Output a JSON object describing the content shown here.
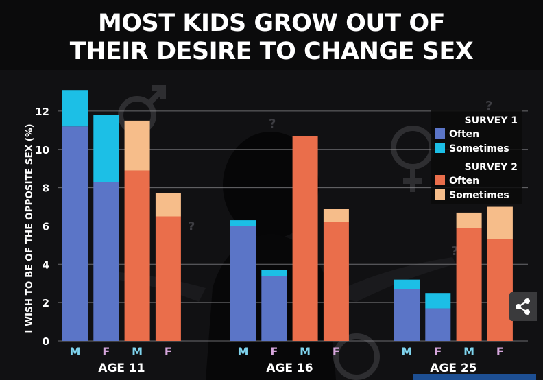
{
  "title_lines": [
    "MOST KIDS GROW OUT OF",
    "THEIR DESIRE TO CHANGE SEX"
  ],
  "colors": {
    "survey1_often": "#5b75c7",
    "survey1_sometimes": "#1cbfe6",
    "survey2_often": "#ea6e4b",
    "survey2_sometimes": "#f6bd8a",
    "male_label": "#7fd4ee",
    "female_label": "#d6a6dc",
    "background": "#0b0b0c"
  },
  "share_icon": "share-icon",
  "chart_data": {
    "type": "bar",
    "stacked": true,
    "ylabel": "I WISH TO BE OF THE OPPOSITE SEX (%)",
    "ylim": [
      0,
      13
    ],
    "yticks": [
      0,
      2,
      4,
      6,
      8,
      10,
      12
    ],
    "grid": true,
    "legend_position": "top-right",
    "legend": [
      {
        "heading": "SURVEY 1",
        "entries": [
          {
            "label": "Often",
            "color": "#5b75c7"
          },
          {
            "label": "Sometimes",
            "color": "#1cbfe6"
          }
        ]
      },
      {
        "heading": "SURVEY 2",
        "entries": [
          {
            "label": "Often",
            "color": "#ea6e4b"
          },
          {
            "label": "Sometimes",
            "color": "#f6bd8a"
          }
        ]
      }
    ],
    "groups": [
      {
        "label": "AGE 11",
        "bars": [
          {
            "sex": "M",
            "survey": 1,
            "often": 11.2,
            "sometimes": 1.9
          },
          {
            "sex": "F",
            "survey": 1,
            "often": 8.3,
            "sometimes": 3.5
          },
          {
            "sex": "M",
            "survey": 2,
            "often": 8.9,
            "sometimes": 2.6
          },
          {
            "sex": "F",
            "survey": 2,
            "often": 6.5,
            "sometimes": 1.2
          }
        ]
      },
      {
        "label": "AGE 16",
        "bars": [
          {
            "sex": "M",
            "survey": 1,
            "often": 6.0,
            "sometimes": 0.3
          },
          {
            "sex": "F",
            "survey": 1,
            "often": 3.4,
            "sometimes": 0.3
          },
          {
            "sex": "M",
            "survey": 2,
            "often": 10.7,
            "sometimes": 0
          },
          {
            "sex": "F",
            "survey": 2,
            "often": 6.2,
            "sometimes": 0.7
          }
        ]
      },
      {
        "label": "AGE 25",
        "bars": [
          {
            "sex": "M",
            "survey": 1,
            "often": 2.7,
            "sometimes": 0.5
          },
          {
            "sex": "F",
            "survey": 1,
            "often": 1.7,
            "sometimes": 0.8
          },
          {
            "sex": "M",
            "survey": 2,
            "often": 5.9,
            "sometimes": 0.8
          },
          {
            "sex": "F",
            "survey": 2,
            "often": 5.3,
            "sometimes": 1.7
          }
        ]
      }
    ]
  }
}
